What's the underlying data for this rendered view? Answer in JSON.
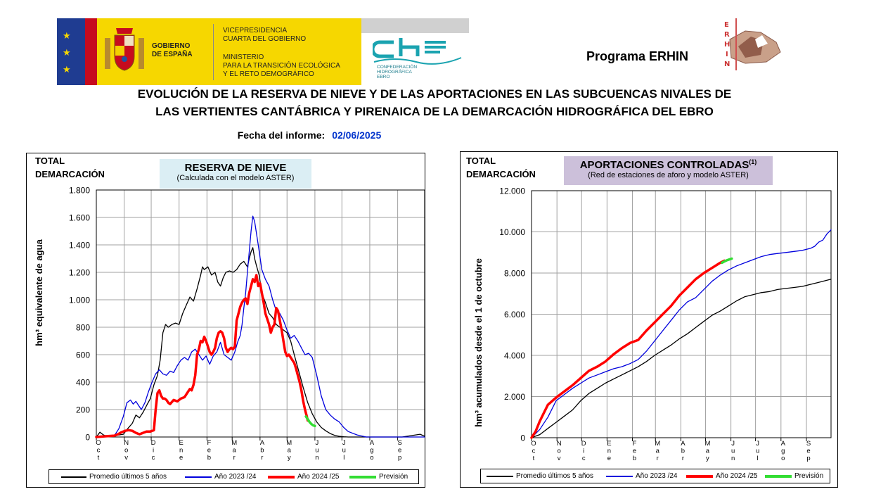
{
  "header": {
    "gobierno": "GOBIERNO\nDE ESPAÑA",
    "vicepresidencia": "VICEPRESIDENCIA\nCUARTA DEL GOBIERNO",
    "ministerio": "MINISTERIO\nPARA LA TRANSICIÓN ECOLÓGICA\nY EL RETO DEMOGRÁFICO",
    "che_logo_text": "che",
    "che_sub": "CONFEDERACIÓN\nHIDROGRÁFICA\nEBRO",
    "programa": "Programa ERHIN",
    "erhin_logo_text": "ERHIN",
    "title_line1": "EVOLUCIÓN DE LA RESERVA DE NIEVE Y DE LAS APORTACIONES EN LAS SUBCUENCAS NIVALES DE",
    "title_line2": "LAS VERTIENTES CANTÁBRICA Y PIRENAICA DE LA DEMARCACIÓN HIDROGRÁFICA DEL EBRO",
    "fecha_label": "Fecha del informe:",
    "fecha_value": "02/06/2025"
  },
  "colors": {
    "promedio": "#000000",
    "y2023": "#0000dd",
    "y2024": "#ff0000",
    "prevision": "#33dd33",
    "reserva_box": "#dbeef4",
    "aportaciones_box": "#ccc0da",
    "grid": "#999999"
  },
  "chart_data": [
    {
      "type": "line",
      "panel_label": "TOTAL\nDEMARCACIÓN",
      "title": "RESERVA DE NIEVE",
      "subtitle": "(Calculada con el modelo ASTER)",
      "ylabel": "hm³ equivalente de agua",
      "ylim": [
        0,
        1800
      ],
      "yticks": [
        0,
        200,
        400,
        600,
        800,
        1000,
        1200,
        1400,
        1600,
        1800
      ],
      "ytick_labels": [
        "0",
        "200",
        "400",
        "600",
        "800",
        "1.000",
        "1.200",
        "1.400",
        "1.600",
        "1.800"
      ],
      "xlim": [
        0,
        365
      ],
      "month_labels": [
        "Oct",
        "Nov",
        "Dic",
        "Ene",
        "Feb",
        "Mar",
        "Abr",
        "May",
        "Jun",
        "Jul",
        "Ago",
        "Sep"
      ],
      "legend_labels": [
        "Promedio últimos 5 años",
        "Año 2023 /24",
        "Año 2024 /25",
        "Previsión"
      ],
      "grid": true,
      "series": [
        {
          "name": "Promedio últimos 5 años",
          "color": "#000000",
          "width": 1.3,
          "x": [
            0,
            4,
            8,
            12,
            18,
            25,
            30,
            33,
            36,
            40,
            44,
            48,
            52,
            56,
            60,
            64,
            68,
            71,
            74,
            77,
            80,
            84,
            88,
            92,
            96,
            100,
            104,
            108,
            112,
            116,
            118,
            120,
            124,
            128,
            132,
            135,
            138,
            141,
            144,
            148,
            152,
            156,
            160,
            164,
            168,
            170,
            172,
            174,
            176,
            178,
            181,
            184,
            188,
            192,
            196,
            200,
            204,
            208,
            212,
            216,
            220,
            225,
            230,
            235,
            240,
            245,
            250,
            255,
            260,
            265,
            270,
            275,
            280,
            290,
            300,
            310,
            320,
            340,
            360,
            365
          ],
          "y": [
            0,
            35,
            15,
            5,
            10,
            15,
            20,
            45,
            70,
            100,
            160,
            140,
            180,
            230,
            280,
            380,
            450,
            560,
            760,
            820,
            800,
            820,
            830,
            820,
            900,
            960,
            1020,
            990,
            1080,
            1180,
            1240,
            1220,
            1240,
            1180,
            1200,
            1130,
            1100,
            1160,
            1200,
            1210,
            1200,
            1220,
            1260,
            1280,
            1240,
            1300,
            1350,
            1380,
            1300,
            1250,
            1180,
            1050,
            980,
            900,
            870,
            820,
            800,
            780,
            760,
            700,
            600,
            480,
            360,
            250,
            170,
            110,
            70,
            45,
            25,
            12,
            5,
            2,
            0,
            0,
            0,
            0,
            0,
            0,
            20,
            5
          ]
        },
        {
          "name": "Año 2023 /24",
          "color": "#0000dd",
          "width": 1.3,
          "x": [
            0,
            10,
            20,
            25,
            30,
            34,
            38,
            41,
            44,
            47,
            50,
            54,
            58,
            62,
            66,
            70,
            74,
            78,
            82,
            86,
            90,
            94,
            98,
            102,
            106,
            110,
            114,
            118,
            122,
            126,
            130,
            134,
            138,
            142,
            146,
            150,
            154,
            157,
            160,
            162,
            164,
            166,
            168,
            170,
            172,
            174,
            176,
            180,
            184,
            188,
            192,
            196,
            200,
            204,
            208,
            212,
            216,
            220,
            224,
            228,
            232,
            236,
            240,
            245,
            250,
            255,
            260,
            265,
            270,
            275,
            280,
            290,
            300,
            365
          ],
          "y": [
            0,
            5,
            10,
            60,
            150,
            250,
            270,
            240,
            260,
            230,
            200,
            250,
            330,
            400,
            460,
            490,
            460,
            450,
            480,
            470,
            520,
            560,
            580,
            560,
            620,
            640,
            600,
            560,
            590,
            530,
            590,
            620,
            690,
            600,
            580,
            560,
            620,
            690,
            740,
            820,
            940,
            1050,
            1200,
            1350,
            1500,
            1610,
            1570,
            1400,
            1220,
            1150,
            1100,
            1000,
            920,
            900,
            850,
            780,
            720,
            740,
            700,
            650,
            600,
            610,
            580,
            450,
            300,
            200,
            160,
            130,
            110,
            70,
            40,
            15,
            0,
            0
          ]
        },
        {
          "name": "Año 2024 /25",
          "color": "#ff0000",
          "width": 3.5,
          "x": [
            0,
            10,
            20,
            24,
            28,
            32,
            36,
            40,
            44,
            48,
            52,
            56,
            60,
            64,
            66,
            68,
            70,
            72,
            74,
            76,
            78,
            80,
            82,
            86,
            90,
            94,
            98,
            102,
            104,
            106,
            108,
            110,
            112,
            114,
            116,
            118,
            120,
            122,
            124,
            126,
            128,
            130,
            132,
            134,
            136,
            138,
            140,
            142,
            144,
            146,
            148,
            150,
            152,
            154,
            156,
            158,
            160,
            162,
            164,
            166,
            168,
            170,
            172,
            174,
            176,
            178,
            180,
            182,
            184,
            186,
            188,
            190,
            192,
            194,
            196,
            198,
            200,
            202,
            204,
            206,
            208,
            210,
            212,
            214,
            216,
            218,
            220,
            222,
            224,
            226,
            228,
            230,
            232,
            234,
            235
          ],
          "y": [
            0,
            5,
            10,
            20,
            35,
            45,
            50,
            45,
            30,
            20,
            30,
            40,
            40,
            50,
            200,
            320,
            340,
            300,
            280,
            280,
            270,
            250,
            240,
            270,
            260,
            280,
            290,
            330,
            350,
            340,
            380,
            450,
            600,
            640,
            700,
            690,
            730,
            700,
            660,
            620,
            600,
            620,
            650,
            720,
            760,
            770,
            760,
            720,
            650,
            620,
            640,
            650,
            640,
            660,
            850,
            900,
            950,
            980,
            1000,
            1010,
            970,
            1050,
            1100,
            1150,
            1130,
            1180,
            1100,
            1120,
            1050,
            980,
            900,
            860,
            820,
            760,
            800,
            820,
            940,
            920,
            850,
            780,
            700,
            620,
            590,
            600,
            580,
            560,
            540,
            500,
            450,
            400,
            340,
            260,
            200,
            150,
            120
          ]
        },
        {
          "name": "Previsión",
          "color": "#33dd33",
          "width": 3.5,
          "x": [
            233,
            235,
            237,
            239,
            241,
            243
          ],
          "y": [
            150,
            130,
            110,
            95,
            85,
            80
          ]
        }
      ]
    },
    {
      "type": "line",
      "panel_label": "TOTAL\nDEMARCACIÓN",
      "title": "APORTACIONES CONTROLADAS",
      "title_sup": "(1)",
      "subtitle": "(Red de estaciones de aforo y modelo ASTER)",
      "ylabel": "hm³ acumulados desde el 1 de octubre",
      "ylim": [
        0,
        12000
      ],
      "yticks": [
        0,
        2000,
        4000,
        6000,
        8000,
        10000,
        12000
      ],
      "ytick_labels": [
        "0",
        "2.000",
        "4.000",
        "6.000",
        "8.000",
        "10.000",
        "12.000"
      ],
      "xlim": [
        0,
        365
      ],
      "month_labels": [
        "Oct",
        "Nov",
        "Dic",
        "Ene",
        "Feb",
        "Mar",
        "Abr",
        "May",
        "Jun",
        "Jul",
        "Ago",
        "Sep"
      ],
      "legend_labels": [
        "Promedio últimos 5 años",
        "Año 2023 /24",
        "Año 2024 /25",
        "Previsión"
      ],
      "grid": true,
      "series": [
        {
          "name": "Promedio últimos 5 años",
          "color": "#000000",
          "width": 1.3,
          "x": [
            0,
            10,
            20,
            30,
            40,
            50,
            60,
            70,
            80,
            90,
            100,
            110,
            120,
            130,
            140,
            150,
            160,
            170,
            180,
            190,
            200,
            210,
            220,
            230,
            240,
            250,
            260,
            270,
            280,
            290,
            300,
            310,
            320,
            330,
            340,
            350,
            360,
            365
          ],
          "y": [
            0,
            150,
            450,
            750,
            1050,
            1350,
            1800,
            2150,
            2400,
            2650,
            2850,
            3050,
            3250,
            3450,
            3700,
            4000,
            4250,
            4500,
            4800,
            5050,
            5350,
            5650,
            5950,
            6150,
            6400,
            6650,
            6850,
            6950,
            7050,
            7100,
            7200,
            7250,
            7300,
            7350,
            7450,
            7550,
            7650,
            7700
          ]
        },
        {
          "name": "Año 2023 /24",
          "color": "#0000dd",
          "width": 1.3,
          "x": [
            0,
            10,
            20,
            30,
            40,
            50,
            60,
            70,
            80,
            90,
            100,
            110,
            120,
            130,
            140,
            150,
            160,
            170,
            180,
            190,
            200,
            210,
            220,
            230,
            240,
            250,
            260,
            270,
            280,
            290,
            300,
            310,
            320,
            330,
            340,
            345,
            350,
            355,
            360,
            365
          ],
          "y": [
            0,
            400,
            1000,
            1800,
            2100,
            2400,
            2650,
            2900,
            3050,
            3200,
            3350,
            3450,
            3600,
            3800,
            4200,
            4700,
            5200,
            5700,
            6200,
            6600,
            6800,
            7200,
            7600,
            7900,
            8150,
            8350,
            8500,
            8650,
            8800,
            8900,
            8950,
            9000,
            9050,
            9100,
            9200,
            9300,
            9500,
            9600,
            9900,
            10100
          ]
        },
        {
          "name": "Año 2024 /25",
          "color": "#ff0000",
          "width": 3.5,
          "x": [
            0,
            5,
            10,
            15,
            20,
            30,
            40,
            50,
            60,
            70,
            80,
            90,
            100,
            110,
            120,
            130,
            140,
            150,
            160,
            170,
            180,
            190,
            200,
            210,
            220,
            230,
            235
          ],
          "y": [
            0,
            300,
            800,
            1200,
            1600,
            1950,
            2250,
            2550,
            2900,
            3250,
            3450,
            3700,
            4050,
            4350,
            4600,
            4750,
            5200,
            5600,
            6000,
            6400,
            6900,
            7300,
            7700,
            8000,
            8250,
            8500,
            8600
          ]
        },
        {
          "name": "Previsión",
          "color": "#33dd33",
          "width": 3.5,
          "x": [
            232,
            235,
            238,
            241,
            244
          ],
          "y": [
            8500,
            8560,
            8620,
            8660,
            8700
          ]
        }
      ]
    }
  ]
}
